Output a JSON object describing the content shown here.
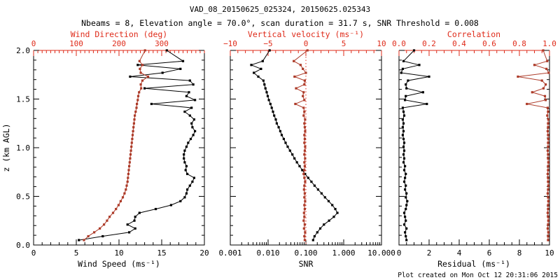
{
  "title": "VAD_08_20150625_025324, 20150625.025343",
  "subtitle": "Nbeams = 8, Elevation angle = 70.0°, scan duration = 31.7 s, SNR Threshold = 0.008",
  "footer": "Plot created on Mon Oct 12 20:31:06 2015",
  "colors": {
    "red_axis": "#df2b1a",
    "red_series": "#ad3b29",
    "black": "#000000",
    "background": "#ffffff"
  },
  "chart_data": {
    "type": "line",
    "description": "Three vertical profile panels sharing height axis z (km AGL), 0-2 km",
    "y_axis": {
      "label": "z (km AGL)",
      "range": [
        0,
        2
      ],
      "ticks": [
        0,
        0.5,
        1.0,
        1.5,
        2.0
      ],
      "tick_labels": [
        "0.0",
        "0.5",
        "1.0",
        "1.5",
        "2.0"
      ],
      "minor_step": 0.1
    },
    "z_km": [
      0.05,
      0.09,
      0.13,
      0.17,
      0.21,
      0.25,
      0.29,
      0.33,
      0.37,
      0.41,
      0.45,
      0.49,
      0.53,
      0.57,
      0.61,
      0.65,
      0.69,
      0.73,
      0.77,
      0.81,
      0.85,
      0.89,
      0.93,
      0.97,
      1.01,
      1.05,
      1.09,
      1.13,
      1.17,
      1.21,
      1.25,
      1.29,
      1.33,
      1.37,
      1.41,
      1.45,
      1.49,
      1.53,
      1.57,
      1.61,
      1.65,
      1.69,
      1.73,
      1.77,
      1.81,
      1.85,
      1.89,
      2.0
    ],
    "panels": [
      {
        "name": "wind",
        "bottom_axis": {
          "label": "Wind Speed (ms⁻¹)",
          "scale": "linear",
          "range": [
            0,
            20
          ],
          "ticks": [
            0,
            5,
            10,
            15,
            20
          ],
          "tick_labels": [
            "0",
            "5",
            "10",
            "15",
            "20"
          ],
          "minor_step": 1
        },
        "top_axis": {
          "label": "Wind Direction (deg)",
          "scale": "linear",
          "range": [
            0,
            400
          ],
          "ticks": [
            0,
            100,
            200,
            300
          ],
          "tick_labels": [
            "0",
            "100",
            "200",
            "300"
          ],
          "minor_step": 10
        },
        "series": [
          {
            "name": "wind-speed",
            "axis": "bottom",
            "color_key": "black",
            "values": [
              5.3,
              8.1,
              11.2,
              11.9,
              11.0,
              11.8,
              11.9,
              12.4,
              14.3,
              16.1,
              17.2,
              17.7,
              17.9,
              18.0,
              18.3,
              18.6,
              18.8,
              18.0,
              17.8,
              17.9,
              17.7,
              17.6,
              17.6,
              17.7,
              17.9,
              18.1,
              18.4,
              18.7,
              18.9,
              18.6,
              18.5,
              18.8,
              18.3,
              17.7,
              18.5,
              13.8,
              18.9,
              17.9,
              18.2,
              13.0,
              18.7,
              18.3,
              11.3,
              15.1,
              17.2,
              12.2,
              17.5,
              15.6
            ]
          },
          {
            "name": "wind-direction",
            "axis": "top",
            "color_key": "red_series",
            "values": [
              118,
              128,
              142,
              155,
              165,
              172,
              178,
              186,
              193,
              199,
              204,
              209,
              213,
              216,
              218,
              220,
              221,
              222,
              223,
              224,
              225,
              226,
              227,
              228,
              229,
              230,
              231,
              232,
              233,
              234,
              235,
              236,
              237,
              239,
              241,
              242,
              244,
              245,
              247,
              252,
              251,
              255,
              268,
              251,
              249,
              255,
              248,
              261
            ]
          }
        ]
      },
      {
        "name": "snr-velocity",
        "bottom_axis": {
          "label": "SNR",
          "scale": "log",
          "range": [
            0.001,
            10
          ],
          "ticks": [
            0.001,
            0.01,
            0.1,
            1,
            10
          ],
          "tick_labels": [
            "0.001",
            "0.010",
            "0.100",
            "1.000",
            "10.000"
          ]
        },
        "top_axis": {
          "label": "Vertical velocity (ms⁻¹)",
          "scale": "linear",
          "range": [
            -10,
            10
          ],
          "ticks": [
            -10,
            -5,
            0,
            5,
            10
          ],
          "tick_labels": [
            "−10",
            "−5",
            "0",
            "5",
            "10"
          ],
          "minor_step": 1
        },
        "ref_line": {
          "axis": "top",
          "value": 0,
          "style": "dotted",
          "color_key": "red_axis"
        },
        "series": [
          {
            "name": "snr",
            "axis": "bottom",
            "color_key": "black",
            "values": [
              0.155,
              0.17,
              0.2,
              0.24,
              0.3,
              0.41,
              0.55,
              0.68,
              0.6,
              0.5,
              0.4,
              0.32,
              0.26,
              0.21,
              0.17,
              0.14,
              0.115,
              0.095,
              0.08,
              0.068,
              0.058,
              0.05,
              0.044,
              0.038,
              0.033,
              0.029,
              0.026,
              0.023,
              0.021,
              0.019,
              0.017,
              0.016,
              0.0145,
              0.0135,
              0.0125,
              0.0115,
              0.0105,
              0.0098,
              0.0092,
              0.0085,
              0.008,
              0.0075,
              0.0055,
              0.0042,
              0.0065,
              0.0036,
              0.0072,
              0.011
            ]
          },
          {
            "name": "vertical-velocity",
            "axis": "top",
            "color_key": "red_series",
            "values": [
              -0.15,
              -0.2,
              -0.1,
              -0.25,
              -0.15,
              -0.3,
              -0.2,
              -0.25,
              -0.15,
              -0.2,
              -0.1,
              -0.2,
              -0.15,
              -0.25,
              -0.2,
              -0.1,
              -0.2,
              -0.3,
              -0.2,
              -0.15,
              -0.2,
              -0.1,
              -0.2,
              -0.15,
              -0.1,
              -0.2,
              -0.15,
              -0.2,
              -0.1,
              -0.15,
              -0.2,
              -0.1,
              -0.3,
              -0.2,
              -0.3,
              -1.4,
              -0.2,
              -0.4,
              -0.3,
              -1.3,
              -0.2,
              -0.15,
              -1.5,
              0.0,
              -0.4,
              -0.7,
              -1.6,
              0.2
            ]
          }
        ]
      },
      {
        "name": "residual-correlation",
        "bottom_axis": {
          "label": "Residual (ms⁻¹)",
          "scale": "linear",
          "range": [
            0,
            10
          ],
          "ticks": [
            0,
            2,
            4,
            6,
            8,
            10
          ],
          "tick_labels": [
            "0",
            "2",
            "4",
            "6",
            "8",
            "10"
          ],
          "minor_step": 0.5
        },
        "top_axis": {
          "label": "Correlation",
          "scale": "linear",
          "range": [
            0,
            1
          ],
          "ticks": [
            0,
            0.2,
            0.4,
            0.6,
            0.8,
            1.0
          ],
          "tick_labels": [
            "0.0",
            "0.2",
            "0.4",
            "0.6",
            "0.8",
            "1.0"
          ],
          "minor_step": 0.05
        },
        "series": [
          {
            "name": "residual",
            "axis": "bottom",
            "color_key": "black",
            "values": [
              0.5,
              0.45,
              0.4,
              0.5,
              0.35,
              0.45,
              0.4,
              0.35,
              0.45,
              0.5,
              0.55,
              0.45,
              0.5,
              0.4,
              0.45,
              0.35,
              0.4,
              0.45,
              0.35,
              0.4,
              0.3,
              0.35,
              0.3,
              0.35,
              0.3,
              0.35,
              0.3,
              0.25,
              0.3,
              0.25,
              0.3,
              0.25,
              0.35,
              0.3,
              0.25,
              1.85,
              0.4,
              0.45,
              1.6,
              0.5,
              0.45,
              0.6,
              2.0,
              0.15,
              0.25,
              1.35,
              0.3,
              1.0
            ]
          },
          {
            "name": "correlation",
            "axis": "top",
            "color_key": "red_series",
            "values": [
              0.99,
              0.99,
              0.992,
              0.988,
              0.99,
              0.992,
              0.99,
              0.988,
              0.99,
              0.99,
              0.992,
              0.99,
              0.988,
              0.99,
              0.992,
              0.99,
              0.99,
              0.988,
              0.99,
              0.99,
              0.992,
              0.99,
              0.99,
              0.988,
              0.99,
              0.99,
              0.992,
              0.99,
              0.988,
              0.99,
              0.99,
              0.992,
              0.985,
              0.99,
              0.988,
              0.85,
              0.975,
              0.97,
              0.885,
              0.96,
              0.975,
              0.95,
              0.79,
              0.995,
              0.98,
              0.9,
              0.985,
              0.958
            ]
          }
        ]
      }
    ]
  }
}
